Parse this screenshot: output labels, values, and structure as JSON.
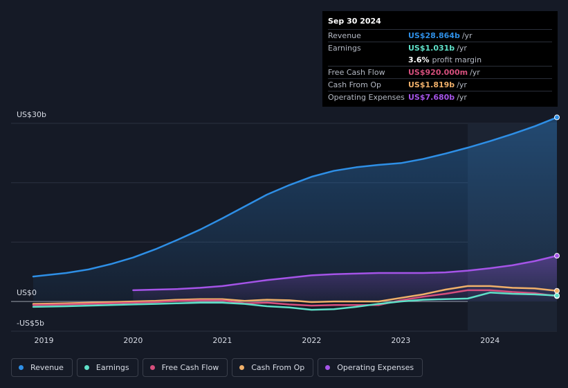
{
  "tooltip": {
    "date": "Sep 30 2024",
    "rows": [
      {
        "label": "Revenue",
        "value": "US$28.864b",
        "unit": "/yr",
        "color": "#2e8fe6"
      },
      {
        "label": "Earnings",
        "value": "US$1.031b",
        "unit": "/yr",
        "color": "#5fe0c8"
      },
      {
        "label": "",
        "value": "3.6%",
        "unit": "profit margin",
        "color": "#ffffff"
      },
      {
        "label": "Free Cash Flow",
        "value": "US$920.000m",
        "unit": "/yr",
        "color": "#d64f7d"
      },
      {
        "label": "Cash From Op",
        "value": "US$1.819b",
        "unit": "/yr",
        "color": "#f0b06a"
      },
      {
        "label": "Operating Expenses",
        "value": "US$7.680b",
        "unit": "/yr",
        "color": "#a554e8"
      }
    ]
  },
  "legend": [
    {
      "label": "Revenue",
      "color": "#2e8fe6"
    },
    {
      "label": "Earnings",
      "color": "#5fe0c8"
    },
    {
      "label": "Free Cash Flow",
      "color": "#d64f7d"
    },
    {
      "label": "Cash From Op",
      "color": "#f0b06a"
    },
    {
      "label": "Operating Expenses",
      "color": "#a554e8"
    }
  ],
  "chart_data": {
    "type": "line",
    "ytick_labels": [
      "US$30b",
      "US$0",
      "-US$5b"
    ],
    "ylim": [
      -5,
      30
    ],
    "xlim": [
      2018.88,
      2024.75
    ],
    "xtick_labels": [
      "2019",
      "2020",
      "2021",
      "2022",
      "2023",
      "2024"
    ],
    "xticks": [
      2019,
      2020,
      2021,
      2022,
      2023,
      2024
    ],
    "highlight_start": 2023.75,
    "grid": true,
    "series": [
      {
        "name": "Revenue",
        "color": "#2e8fe6",
        "fill": true,
        "x": [
          2018.88,
          2019.25,
          2019.5,
          2019.75,
          2020.0,
          2020.25,
          2020.5,
          2020.75,
          2021.0,
          2021.25,
          2021.5,
          2021.75,
          2022.0,
          2022.25,
          2022.5,
          2022.75,
          2023.0,
          2023.25,
          2023.5,
          2023.75,
          2024.0,
          2024.25,
          2024.5,
          2024.75
        ],
        "y": [
          4.2,
          4.8,
          5.4,
          6.3,
          7.4,
          8.8,
          10.4,
          12.1,
          14.0,
          16.0,
          18.0,
          19.6,
          21.0,
          22.0,
          22.6,
          23.0,
          23.3,
          24.0,
          24.9,
          25.9,
          27.0,
          28.2,
          29.5,
          31.0
        ]
      },
      {
        "name": "Operating Expenses",
        "color": "#a554e8",
        "fill": true,
        "x": [
          2020.0,
          2020.25,
          2020.5,
          2020.75,
          2021.0,
          2021.25,
          2021.5,
          2021.75,
          2022.0,
          2022.25,
          2022.5,
          2022.75,
          2023.0,
          2023.25,
          2023.5,
          2023.75,
          2024.0,
          2024.25,
          2024.5,
          2024.75
        ],
        "y": [
          1.9,
          2.0,
          2.1,
          2.3,
          2.6,
          3.1,
          3.6,
          4.0,
          4.4,
          4.6,
          4.7,
          4.8,
          4.8,
          4.8,
          4.9,
          5.2,
          5.6,
          6.1,
          6.8,
          7.7
        ]
      },
      {
        "name": "Cash From Op",
        "color": "#f0b06a",
        "fill": false,
        "x": [
          2018.88,
          2019.25,
          2019.5,
          2019.75,
          2020.0,
          2020.25,
          2020.5,
          2020.75,
          2021.0,
          2021.25,
          2021.5,
          2021.75,
          2022.0,
          2022.25,
          2022.5,
          2022.75,
          2023.0,
          2023.25,
          2023.5,
          2023.75,
          2024.0,
          2024.25,
          2024.5,
          2024.75
        ],
        "y": [
          -0.4,
          -0.3,
          -0.2,
          -0.1,
          0.0,
          0.1,
          0.3,
          0.4,
          0.4,
          0.1,
          0.3,
          0.2,
          -0.1,
          0.0,
          0.0,
          0.0,
          0.6,
          1.2,
          2.0,
          2.6,
          2.6,
          2.3,
          2.2,
          1.8
        ]
      },
      {
        "name": "Free Cash Flow",
        "color": "#d64f7d",
        "fill": false,
        "x": [
          2018.88,
          2019.25,
          2019.5,
          2019.75,
          2020.0,
          2020.25,
          2020.5,
          2020.75,
          2021.0,
          2021.25,
          2021.5,
          2021.75,
          2022.0,
          2022.25,
          2022.5,
          2022.75,
          2023.0,
          2023.25,
          2023.5,
          2023.75,
          2024.0,
          2024.25,
          2024.5,
          2024.75
        ],
        "y": [
          -0.6,
          -0.5,
          -0.4,
          -0.3,
          -0.2,
          -0.1,
          0.1,
          0.2,
          0.2,
          -0.3,
          -0.2,
          -0.5,
          -0.7,
          -0.6,
          -0.6,
          -0.6,
          0.2,
          0.8,
          1.3,
          1.9,
          1.9,
          1.6,
          1.4,
          0.9
        ]
      },
      {
        "name": "Earnings",
        "color": "#5fe0c8",
        "fill": false,
        "x": [
          2018.88,
          2019.25,
          2019.5,
          2019.75,
          2020.0,
          2020.25,
          2020.5,
          2020.75,
          2021.0,
          2021.25,
          2021.5,
          2021.75,
          2022.0,
          2022.25,
          2022.5,
          2022.75,
          2023.0,
          2023.25,
          2023.5,
          2023.75,
          2024.0,
          2024.25,
          2024.5,
          2024.75
        ],
        "y": [
          -0.9,
          -0.8,
          -0.7,
          -0.6,
          -0.5,
          -0.4,
          -0.3,
          -0.2,
          -0.2,
          -0.4,
          -0.8,
          -1.0,
          -1.4,
          -1.3,
          -0.9,
          -0.4,
          0.0,
          0.3,
          0.4,
          0.5,
          1.5,
          1.3,
          1.2,
          1.0
        ]
      }
    ]
  }
}
